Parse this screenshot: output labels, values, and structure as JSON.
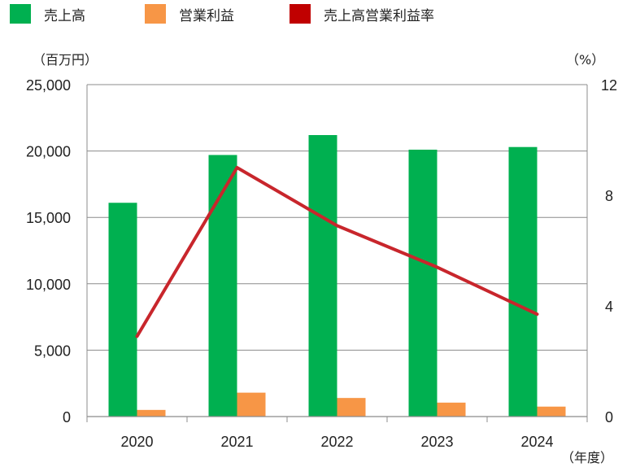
{
  "chart_data": {
    "type": "bar",
    "categories": [
      "2020",
      "2021",
      "2022",
      "2023",
      "2024"
    ],
    "series": [
      {
        "name": "売上高",
        "kind": "bar",
        "axis": "left",
        "color": "#00b050",
        "values": [
          16100,
          19700,
          21200,
          20100,
          20300
        ]
      },
      {
        "name": "営業利益",
        "kind": "bar",
        "axis": "left",
        "color": "#f79646",
        "values": [
          500,
          1800,
          1400,
          1050,
          750
        ]
      },
      {
        "name": "売上高営業利益率",
        "kind": "line",
        "axis": "right",
        "color": "#c00000",
        "values": [
          2.9,
          9.0,
          6.9,
          5.4,
          3.7
        ]
      }
    ],
    "yticks_left": [
      "0",
      "5,000",
      "10,000",
      "15,000",
      "20,000",
      "25,000"
    ],
    "yticks_right": [
      "0",
      "4",
      "8",
      "12"
    ],
    "ylim_left": [
      0,
      25000
    ],
    "ylim_right": [
      0,
      12
    ],
    "ylabel_left": "（百万円）",
    "ylabel_right": "（%）",
    "xlabel": "（年度）",
    "legend_position": "top-left",
    "grid": true,
    "line_display_color": "#c8262c"
  }
}
